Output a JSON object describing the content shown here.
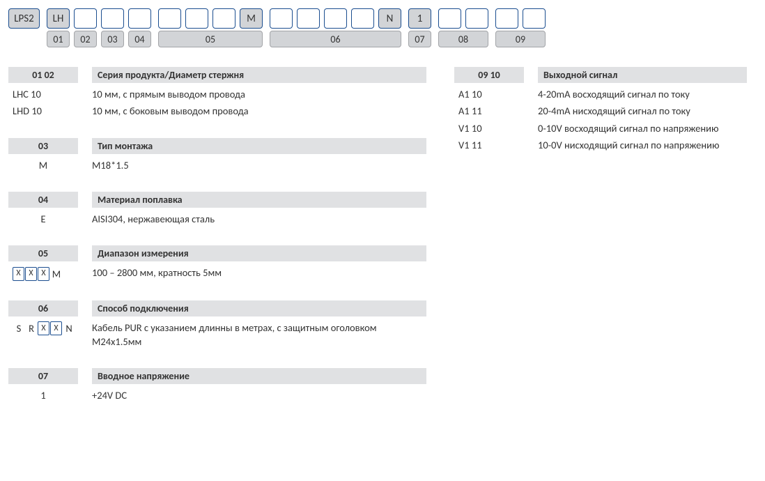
{
  "colors": {
    "border": "#1a4d8f",
    "fill": "#d2d4d7",
    "header_bg": "#e0e1e3",
    "label_border": "#a2a4a7",
    "text": "#333333",
    "bg": "#ffffff"
  },
  "codebar": {
    "cells": [
      "LPS2",
      "LH",
      "",
      "",
      "",
      "",
      "",
      "",
      "M",
      "",
      "",
      "",
      "",
      "N",
      "1",
      "",
      "",
      "",
      ""
    ],
    "filled": [
      true,
      true,
      false,
      false,
      false,
      false,
      false,
      false,
      true,
      false,
      false,
      false,
      false,
      true,
      true,
      false,
      false,
      false,
      false
    ],
    "labels": [
      "01",
      "02",
      "03",
      "04",
      "05",
      "06",
      "07",
      "08",
      "09"
    ]
  },
  "sections_left": [
    {
      "num": "01 02",
      "title": "Серия продукта/Диаметр стержня",
      "rows": [
        {
          "code": "LHC 10",
          "desc": "10 мм, с прямым выводом провода",
          "mode": "plain-left"
        },
        {
          "code": "LHD 10",
          "desc": "10 мм, с боковым выводом провода",
          "mode": "plain-left"
        }
      ]
    },
    {
      "num": "03",
      "title": "Тип монтажа",
      "rows": [
        {
          "code": "M",
          "desc": "M18*1.5",
          "mode": "plain"
        }
      ]
    },
    {
      "num": "04",
      "title": "Материал поплавка",
      "rows": [
        {
          "code": "E",
          "desc": "AISI304, нержавеющая сталь",
          "mode": "plain"
        }
      ]
    },
    {
      "num": "05",
      "title": "Диапазон измерения",
      "rows": [
        {
          "code": "XXXM",
          "desc": "100 – 2800 мм, кратность 5мм",
          "mode": "cells",
          "prefix": "",
          "cells": [
            "X",
            "X",
            "X"
          ],
          "suffix": "M"
        }
      ]
    },
    {
      "num": "06",
      "title": "Способ подключения",
      "rows": [
        {
          "code": "SRXXN",
          "desc": "Кабель PUR с указанием длинны в метрах, с защитным оголовком M24x1.5мм",
          "mode": "cells",
          "prefix": "SR",
          "cells": [
            "X",
            "X"
          ],
          "suffix": "N"
        }
      ]
    },
    {
      "num": "07",
      "title": "Вводное напряжение",
      "rows": [
        {
          "code": "1",
          "desc": "+24V DC",
          "mode": "plain"
        }
      ]
    }
  ],
  "sections_right": [
    {
      "num": "09 10",
      "title": "Выходной сигнал",
      "rows": [
        {
          "code": "A1 10",
          "desc": "4-20mA  восходящий сигнал по току",
          "mode": "plain-left"
        },
        {
          "code": "A1 11",
          "desc": "20-4mA нисходящий сигнал по току",
          "mode": "plain-left"
        },
        {
          "code": "V1 10",
          "desc": "0-10V восходящий сигнал по напряжению",
          "mode": "plain-left"
        },
        {
          "code": "V1 11",
          "desc": "10-0V нисходящий сигнал по напряжению",
          "mode": "plain-left"
        }
      ]
    }
  ]
}
